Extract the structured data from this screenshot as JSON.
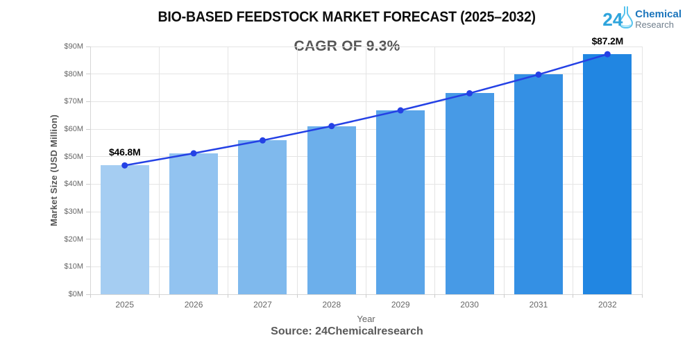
{
  "header": {
    "title": "BIO-BASED FEEDSTOCK MARKET FORECAST (2025–2032)",
    "subtitle": "CAGR OF 9.3%"
  },
  "logo": {
    "number": "24",
    "name_top": "Chemical",
    "name_bottom": "Research",
    "icon": "flask-icon",
    "colors": {
      "number": "#2EA4DC",
      "flask": "#55c3ee",
      "name_top": "#1B75BC",
      "name_bottom": "#6F7E8C"
    }
  },
  "chart_data": {
    "type": "bar",
    "title": "BIO-BASED FEEDSTOCK MARKET FORECAST (2025–2032)",
    "subtitle": "CAGR OF 9.3%",
    "categories": [
      "2025",
      "2026",
      "2027",
      "2028",
      "2029",
      "2030",
      "2031",
      "2032"
    ],
    "series": [
      {
        "name": "Market Size",
        "values": [
          46.8,
          51.2,
          55.9,
          61.1,
          66.8,
          73.0,
          79.8,
          87.2
        ]
      }
    ],
    "xlabel": "Year",
    "ylabel": "Market Size (USD Million)",
    "ylim": [
      0,
      90
    ],
    "ytick_labels": [
      "$0M",
      "$10M",
      "$20M",
      "$30M",
      "$40M",
      "$50M",
      "$60M",
      "$70M",
      "$80M",
      "$90M"
    ],
    "grid": true,
    "legend": "none",
    "bar_colors": [
      "#A5CDF2",
      "#92C3F0",
      "#7FB9ED",
      "#6CAFEB",
      "#5AA5E9",
      "#479AE6",
      "#3490E4",
      "#2186E2"
    ],
    "line_color": "#2441E5",
    "line_overlay": true,
    "data_labels": [
      {
        "category": "2025",
        "text": "$46.8M"
      },
      {
        "category": "2032",
        "text": "$87.2M"
      }
    ]
  },
  "footer": {
    "xlabel": "Year",
    "source": "Source: 24Chemicalresearch"
  }
}
